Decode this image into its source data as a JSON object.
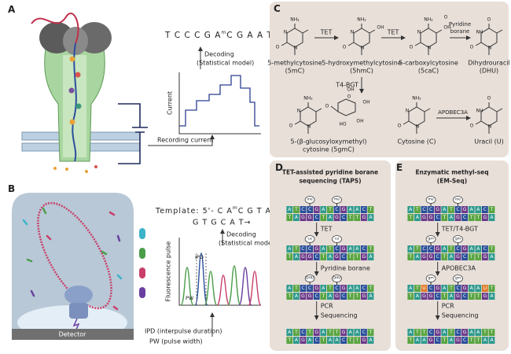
{
  "panel_a": {
    "label": "A",
    "sequence": {
      "before": "T C C C G A",
      "mod": "m",
      "after": "C G A A T"
    },
    "decoding": "Decoding",
    "model": "(Statistical model)",
    "y_axis": "Current",
    "recording": "Recording current"
  },
  "panel_b": {
    "label": "B",
    "template": {
      "prefix": "Template: 5'- C A",
      "mod": "m",
      "suffix": "C G T A -3'"
    },
    "read": "G T G C A T→",
    "decoding": "Decoding",
    "model": "(Statistical model)",
    "y_axis": "Fluorescence pulse",
    "ipd": "IPD",
    "pw": "PW",
    "detector": "Detector",
    "ipd_def": "IPD (interpulse duration)",
    "pw_def": "PW (pulse width)"
  },
  "panel_c": {
    "label": "C",
    "molecules": [
      {
        "name": "5-methylcytosine",
        "abbr": "(5mC)",
        "atoms": [
          "NH₂",
          "N",
          "N",
          "O"
        ]
      },
      {
        "name": "5-hydroxymethylcytosine",
        "abbr": "(5hmC)",
        "atoms": [
          "NH₂",
          "N",
          "N",
          "O",
          "OH"
        ]
      },
      {
        "name": "5-carboxylcytosine",
        "abbr": "(5caC)",
        "atoms": [
          "NH₂",
          "N",
          "N",
          "O",
          "OH",
          "O"
        ]
      },
      {
        "name": "Dihydrouracil",
        "abbr": "(DHU)",
        "atoms": [
          "O",
          "NH",
          "N",
          "O"
        ]
      },
      {
        "name": "5-(β-glucosyloxymethyl)",
        "abbr": "cytosine (5gmC)",
        "atoms": [
          "NH₂",
          "N",
          "N",
          "O",
          "O"
        ],
        "sugar": [
          "O",
          "OH",
          "HO",
          "OH",
          "OH"
        ]
      },
      {
        "name": "Cytosine (C)",
        "atoms": [
          "NH₂",
          "N",
          "N",
          "O"
        ]
      },
      {
        "name": "Uracil (U)",
        "atoms": [
          "O",
          "NH",
          "N",
          "O"
        ]
      }
    ],
    "steps": {
      "tet1": "TET",
      "tet2": "TET",
      "reductant": [
        "Pyridine",
        "borane"
      ],
      "bgt": "T4-BGT",
      "apobec": "APOBEC3A"
    }
  },
  "panel_d": {
    "label": "D",
    "title": [
      "TET-assisted pyridine borane",
      "sequencing (TAPS)"
    ],
    "rows": [
      {
        "top": "ATCCGATCGAACT",
        "bottom": "TAGGCTAGCTTGA",
        "marks": [
          "me",
          "me"
        ]
      },
      {
        "top": "ATCCGATCGAACT",
        "bottom": "TAGGCTAGCTTGA",
        "marks": [
          "ca",
          "ca"
        ]
      },
      {
        "top": "ATCCGATCGAACT",
        "bottom": "TAGGCTAGCTTGA",
        "marks": [
          "DHU",
          "DHU"
        ]
      },
      {
        "top": "ATCTGATTGAACT",
        "bottom": "TAGACTAACTTGA"
      }
    ],
    "steps": [
      "TET",
      "Pyridine borane",
      "PCR",
      "Sequencing"
    ]
  },
  "panel_e": {
    "label": "E",
    "title": [
      "Enzymatic methyl-seq",
      "(EM-Seq)"
    ],
    "rows": [
      {
        "top": "ATCCGATCGAACT",
        "bottom": "TAGGCTAGCTTGA",
        "marks": [
          "me",
          "me"
        ]
      },
      {
        "top": "ATCCGATCGAACT",
        "bottom": "TAGGCTAGCTTGA",
        "marks": [
          "gm",
          "gm"
        ]
      },
      {
        "top": "ATUCGATCGAAUT",
        "bottom": "TAGGCTAGCTTGA",
        "marks": [
          "gm",
          "gm"
        ]
      },
      {
        "top": "ATTCGATCGAATT",
        "bottom": "TAAGCTAGCTTAA"
      }
    ],
    "steps": [
      "TET/T4-BGT",
      "APOBEC3A",
      "PCR",
      "Sequencing"
    ]
  }
}
